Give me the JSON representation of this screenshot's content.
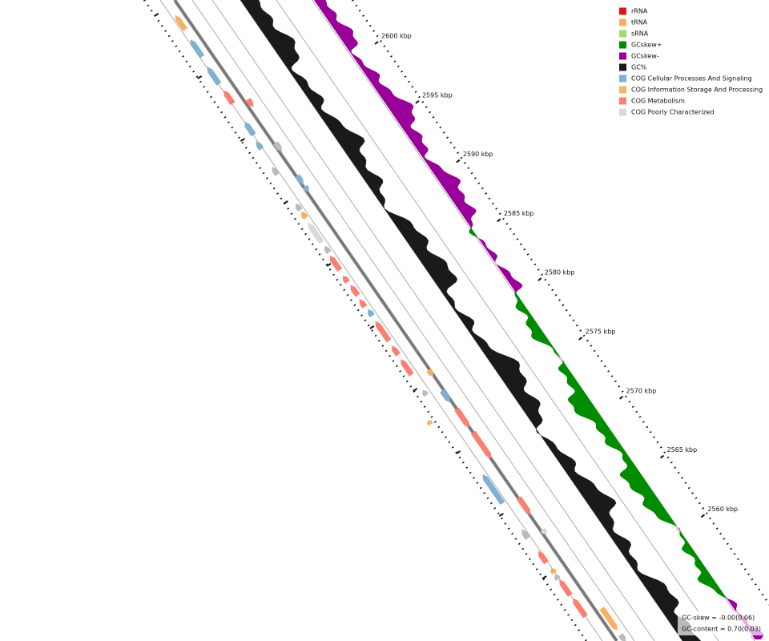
{
  "legend": [
    {
      "label": "rRNA",
      "color": "#d7191c"
    },
    {
      "label": "tRNA",
      "color": "#fdae61"
    },
    {
      "label": "sRNA",
      "color": "#a6d96a"
    },
    {
      "label": "GCskew+",
      "color": "#008c00"
    },
    {
      "label": "GCskew-",
      "color": "#990099"
    },
    {
      "label": "GC%",
      "color": "#1a1a1a"
    },
    {
      "label": "COG Cellular Processes And Signaling",
      "color": "#80b1d3"
    },
    {
      "label": "COG Information Storage And Processing",
      "color": "#fdb462"
    },
    {
      "label": "COG Metabolism",
      "color": "#fb8072"
    },
    {
      "label": "COG Poorly Characterized",
      "color": "#d9d9d9"
    }
  ],
  "scale_labels": [
    "2600 kbp",
    "2595 kbp",
    "2590 kbp",
    "2585 kbp",
    "2580 kbp",
    "2575 kbp",
    "2570 kbp",
    "2565 kbp",
    "2560 kbp"
  ],
  "stats": [
    "GC-skew = -0.00(0.06)",
    "GC-content = 0.70(0.03)"
  ]
}
